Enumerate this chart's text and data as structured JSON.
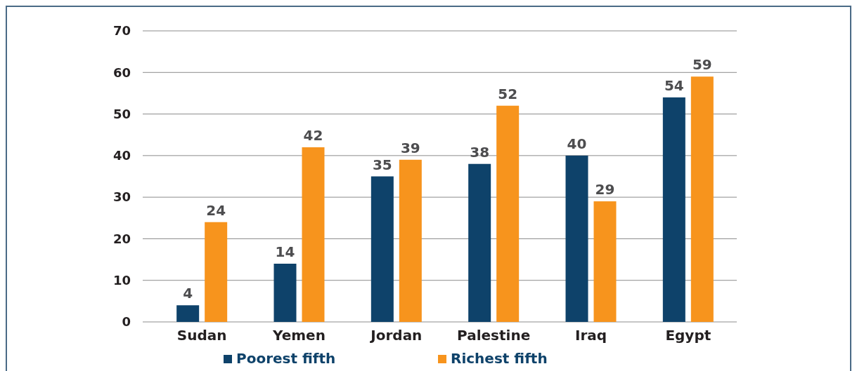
{
  "chart_data": {
    "type": "bar",
    "categories": [
      "Sudan",
      "Yemen",
      "Jordan",
      "Palestine",
      "Iraq",
      "Egypt"
    ],
    "series": [
      {
        "name": "Poorest fifth",
        "color": "#0e426a",
        "values": [
          4,
          14,
          35,
          38,
          40,
          54
        ]
      },
      {
        "name": "Richest fifth",
        "color": "#f7941d",
        "values": [
          24,
          42,
          39,
          52,
          29,
          59
        ]
      }
    ],
    "ylim": [
      0,
      70
    ],
    "yticks": [
      0,
      10,
      20,
      30,
      40,
      50,
      60,
      70
    ],
    "grid": "y",
    "legend": "bottom",
    "data_labels": true
  }
}
